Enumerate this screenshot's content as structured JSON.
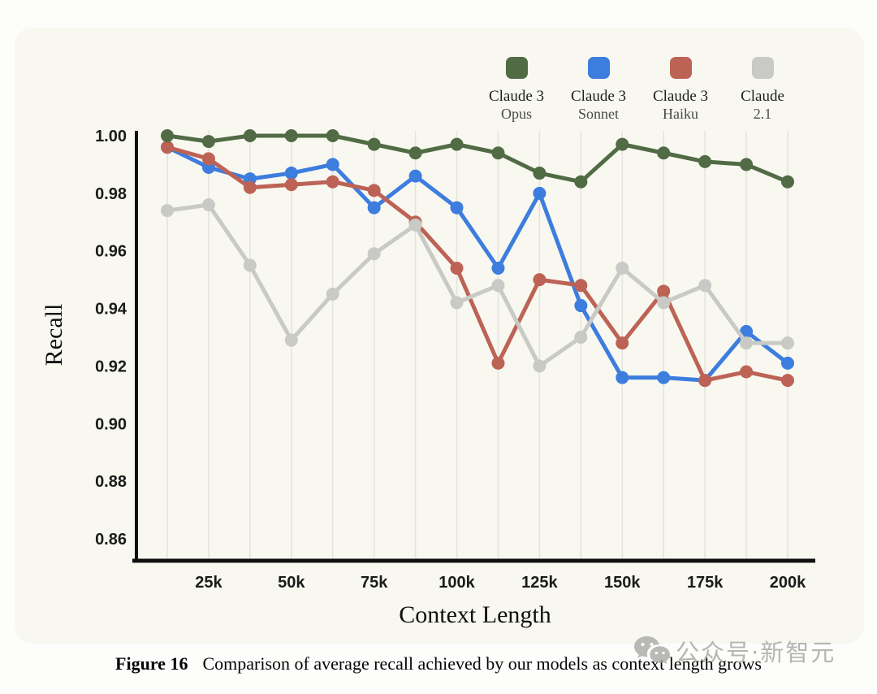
{
  "page": {
    "background": "#fdfdfc",
    "card_background": "#f8f8f1"
  },
  "legend": {
    "items": [
      {
        "label_line1": "Claude 3",
        "label_line2": "Opus",
        "color": "#516b45"
      },
      {
        "label_line1": "Claude 3",
        "label_line2": "Sonnet",
        "color": "#3d7dde"
      },
      {
        "label_line1": "Claude 3",
        "label_line2": "Haiku",
        "color": "#bd6355"
      },
      {
        "label_line1": "Claude",
        "label_line2": "2.1",
        "color": "#c9c9c5"
      }
    ]
  },
  "chart_data": {
    "type": "line",
    "title": "",
    "xlabel": "Context Length",
    "ylabel": "Recall",
    "x": [
      12.5,
      25,
      37.5,
      50,
      62.5,
      75,
      87.5,
      100,
      112.5,
      125,
      137.5,
      150,
      162.5,
      175,
      187.5,
      200
    ],
    "x_unit": "k tokens",
    "x_tick_values": [
      25,
      50,
      75,
      100,
      125,
      150,
      175,
      200
    ],
    "x_tick_labels": [
      "25k",
      "50k",
      "75k",
      "100k",
      "125k",
      "150k",
      "175k",
      "200k"
    ],
    "y_ticks": [
      1.0,
      0.98,
      0.96,
      0.94,
      0.92,
      0.9,
      0.88,
      0.86
    ],
    "ylim": [
      0.86,
      1.005
    ],
    "grid": "vertical-gridlines-at-each-data-point",
    "legend_position": "top-right",
    "series": [
      {
        "name": "Claude 3 Opus",
        "color": "#516b45",
        "values": [
          1.0,
          0.998,
          1.0,
          1.0,
          1.0,
          0.997,
          0.994,
          0.997,
          0.994,
          0.987,
          0.984,
          0.997,
          0.994,
          0.991,
          0.99,
          0.984
        ]
      },
      {
        "name": "Claude 3 Sonnet",
        "color": "#3d7dde",
        "values": [
          0.996,
          0.989,
          0.985,
          0.987,
          0.99,
          0.975,
          0.986,
          0.975,
          0.954,
          0.98,
          0.941,
          0.916,
          0.916,
          0.915,
          0.932,
          0.921
        ]
      },
      {
        "name": "Claude 3 Haiku",
        "color": "#bd6355",
        "values": [
          0.996,
          0.992,
          0.982,
          0.983,
          0.984,
          0.981,
          0.97,
          0.954,
          0.921,
          0.95,
          0.948,
          0.928,
          0.946,
          0.915,
          0.918,
          0.915
        ]
      },
      {
        "name": "Claude 2.1",
        "color": "#c9c9c5",
        "values": [
          0.974,
          0.976,
          0.955,
          0.929,
          0.945,
          0.959,
          0.969,
          0.942,
          0.948,
          0.92,
          0.93,
          0.954,
          0.942,
          0.948,
          0.928,
          0.928
        ]
      }
    ],
    "style": {
      "gridline_color": "#e5e5de",
      "axis_color": "#111111",
      "line_width": 5,
      "point_radius": 8
    }
  },
  "caption": {
    "label": "Figure 16",
    "text": "Comparison of average recall achieved by our models as context length grows"
  },
  "watermark": {
    "icon": "wechat-icon",
    "text": "公众号·新智元"
  }
}
